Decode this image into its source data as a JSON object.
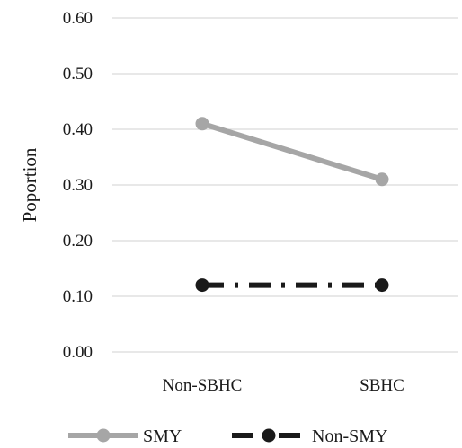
{
  "chart_data": {
    "type": "line",
    "categories": [
      "Non-SBHC",
      "SBHC"
    ],
    "ylabel": "Poportion",
    "xlabel": "",
    "ylim": [
      0,
      0.6
    ],
    "yticks": [
      "0.00",
      "0.10",
      "0.20",
      "0.30",
      "0.40",
      "0.50",
      "0.60"
    ],
    "grid": "horizontal",
    "legend_position": "bottom",
    "series": [
      {
        "name": "SMY",
        "values": [
          0.41,
          0.31
        ],
        "color": "#a6a6a6",
        "line_style": "solid",
        "marker": "circle"
      },
      {
        "name": "Non-SMY",
        "values": [
          0.12,
          0.12
        ],
        "color": "#1a1a1a",
        "line_style": "dash-dot",
        "marker": "circle"
      }
    ]
  }
}
